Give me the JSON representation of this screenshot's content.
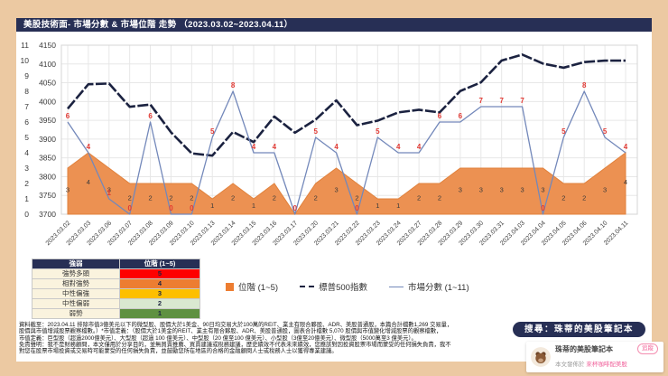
{
  "header": {
    "title": "美股技術面- 市場分數 & 市場位階 走勢 （2023.03.02~2023.04.11）"
  },
  "chart_data": {
    "type": "combo",
    "title": "美股技術面- 市場分數 & 市場位階 走勢",
    "x": [
      "2023.03.02",
      "2023.03.03",
      "2023.03.06",
      "2023.03.07",
      "2023.03.08",
      "2023.03.09",
      "2023.03.10",
      "2023.03.13",
      "2023.03.14",
      "2023.03.15",
      "2023.03.16",
      "2023.03.17",
      "2023.03.20",
      "2023.03.21",
      "2023.03.22",
      "2023.03.23",
      "2023.03.24",
      "2023.03.27",
      "2023.03.28",
      "2023.03.29",
      "2023.03.30",
      "2023.03.31",
      "2023.04.03",
      "2023.04.04",
      "2023.04.05",
      "2023.04.06",
      "2023.04.10",
      "2023.04.11"
    ],
    "axes": {
      "score": {
        "min": 0,
        "max": 11,
        "step": 1
      },
      "spx": {
        "min": 3700,
        "max": 4150,
        "step": 50
      }
    },
    "grid": true,
    "legend_position": "bottom",
    "series": [
      {
        "id": "rank",
        "name": "位階 (1~5)",
        "type": "area",
        "axis": "score",
        "color": "#ec9152",
        "edge": "#e0813c",
        "label_color": "#3a3a3a",
        "values": [
          3,
          4,
          3,
          2,
          2,
          2,
          2,
          1,
          2,
          1,
          2,
          0,
          2,
          3,
          2,
          1,
          1,
          2,
          2,
          3,
          3,
          3,
          3,
          3,
          2,
          2,
          3,
          4
        ]
      },
      {
        "id": "spx",
        "name": "標普500指數",
        "type": "line",
        "axis": "spx",
        "color": "#1b2240",
        "values": [
          3981,
          4046,
          4048,
          3986,
          3992,
          3918,
          3862,
          3856,
          3919,
          3892,
          3960,
          3917,
          3952,
          4003,
          3937,
          3949,
          3971,
          3978,
          3971,
          4028,
          4051,
          4109,
          4125,
          4101,
          4090,
          4105,
          4109,
          4109
        ]
      },
      {
        "id": "score",
        "name": "市場分數 (1~11)",
        "type": "line",
        "axis": "score",
        "color": "#7388ba",
        "label_color": "#e23b35",
        "values": [
          6,
          4,
          1,
          0,
          6,
          0,
          0,
          5,
          8,
          4,
          4,
          0,
          5,
          4,
          0,
          5,
          4,
          4,
          6,
          6,
          7,
          7,
          7,
          0,
          5,
          8,
          5,
          4
        ]
      }
    ]
  },
  "legend_table": {
    "headers": [
      "強弱",
      "位階 (1~5)"
    ],
    "label_bg": "#faf3de",
    "rows": [
      {
        "label": "強勢多頭",
        "value": "5",
        "color": "#fe0000"
      },
      {
        "label": "相對強勢",
        "value": "4",
        "color": "#ed7d31"
      },
      {
        "label": "中性偏強",
        "value": "3",
        "color": "#fdbf00"
      },
      {
        "label": "中性偏弱",
        "value": "2",
        "color": "#d9e8d0"
      },
      {
        "label": "弱勢",
        "value": "1",
        "color": "#5f9141"
      }
    ]
  },
  "chart_legend": {
    "area": "位階 (1~5)",
    "spx": "標普500指數",
    "score": "市場分數 (1~11)"
  },
  "footnotes": {
    "lines": [
      "資料截至：2023.04.11 排除市值3億美元以下的微型股、股價大於1美金、90日均交易大於100萬的REIT、業主有限合夥股、ADR、美股普通股，本篇合計檔數1,269 交易量，",
      "股價與市值增減股票觀察檔數。）*市值定義：（股價大於1美金的REIT、業主有限合夥股、ADR、美股普通股，圖表合計檔數 5,070 股價與市值變化增減股票的觀察檔數，",
      "市值定義：巨型股（超過2000億美元）、大型股（超過 100 億美元）、中型股（20 億至100 億美元）、小型股（3億至20億美元）、微型股（5000萬至3 億美元）。",
      "免責聲明：我不是財務顧問，本文僅用於分享目的，並無買賣推薦、買賣建議或稅務建議，歷史績效不代表未來績效，您應該對因投資股票市場而蒙受的任何損失負責，我不",
      "對您在股票市場投資或交易時可能蒙受的任何損失負責，並鼓勵您所在地區的合格的金融顧問人士或稅務人士以獲得專業建議。"
    ]
  },
  "branding": {
    "search_text": "搜尋：珠蒂的美股筆記本",
    "profile_name": "珠蒂的美股筆記本",
    "follow_label": "追蹤",
    "published_prefix": "本文發佈於",
    "published_link": "來杯咖啡配美股"
  },
  "colors": {
    "background": "#ecc9a2",
    "navy": "#272f55",
    "area_orange": "#ec9152",
    "score_blue": "#7388ba",
    "spx_navy": "#1b2240",
    "score_label_red": "#e23b35",
    "pink_accent": "#f0609a"
  }
}
